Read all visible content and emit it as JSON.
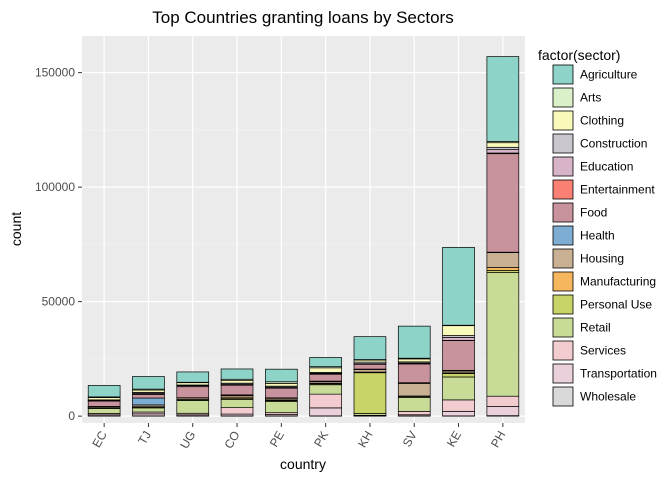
{
  "chart_data": {
    "type": "bar",
    "stacked": true,
    "title": "Top Countries granting loans by Sectors",
    "xlabel": "country",
    "ylabel": "count",
    "ylim": [
      -3000,
      166000
    ],
    "yticks": [
      0,
      50000,
      100000,
      150000
    ],
    "ytick_labels": [
      "0",
      "50000",
      "100000",
      "150000"
    ],
    "grid": true,
    "legend_title": "factor(sector)",
    "legend_position": "right",
    "categories": [
      "EC",
      "TJ",
      "UG",
      "CO",
      "PE",
      "PK",
      "KH",
      "SV",
      "KE",
      "PH"
    ],
    "series": [
      {
        "name": "Agriculture",
        "color": "#8DD3C7",
        "values": [
          5000,
          5500,
          4500,
          4500,
          5500,
          4000,
          10000,
          14000,
          34000,
          37000
        ]
      },
      {
        "name": "Arts",
        "color": "#D9F0C8",
        "values": [
          300,
          400,
          200,
          600,
          700,
          500,
          200,
          300,
          200,
          600
        ]
      },
      {
        "name": "Clothing",
        "color": "#F9F9BA",
        "values": [
          1000,
          1000,
          1000,
          1100,
          1200,
          2000,
          900,
          1300,
          4300,
          2000
        ]
      },
      {
        "name": "Construction",
        "color": "#C9C6CE",
        "values": [
          200,
          400,
          300,
          400,
          400,
          400,
          700,
          500,
          800,
          1000
        ]
      },
      {
        "name": "Education",
        "color": "#D7B4C7",
        "values": [
          300,
          400,
          400,
          400,
          400,
          300,
          200,
          300,
          1300,
          1500
        ]
      },
      {
        "name": "Entertainment",
        "color": "#F98073",
        "values": [
          50,
          100,
          50,
          100,
          100,
          100,
          50,
          100,
          100,
          300
        ]
      },
      {
        "name": "Food",
        "color": "#C9939D",
        "values": [
          2300,
          1600,
          4800,
          4200,
          4200,
          3000,
          2100,
          8200,
          13000,
          43000
        ]
      },
      {
        "name": "Health",
        "color": "#7EADD3",
        "values": [
          50,
          3000,
          100,
          300,
          200,
          300,
          200,
          300,
          300,
          200
        ]
      },
      {
        "name": "Housing",
        "color": "#C9B093",
        "values": [
          500,
          800,
          700,
          700,
          700,
          700,
          1100,
          5500,
          800,
          6500
        ]
      },
      {
        "name": "Manufacturing",
        "color": "#F6B65D",
        "values": [
          50,
          100,
          100,
          500,
          300,
          200,
          300,
          200,
          300,
          1300
        ]
      },
      {
        "name": "Personal Use",
        "color": "#C8D368",
        "values": [
          300,
          400,
          300,
          500,
          400,
          400,
          17800,
          400,
          1500,
          900
        ]
      },
      {
        "name": "Retail",
        "color": "#C8DC98",
        "values": [
          2200,
          1800,
          5600,
          3600,
          4900,
          4100,
          800,
          6100,
          10000,
          54000
        ]
      },
      {
        "name": "Services",
        "color": "#F3CCD0",
        "values": [
          600,
          800,
          700,
          2800,
          800,
          6000,
          200,
          1500,
          5000,
          4500
        ]
      },
      {
        "name": "Transportation",
        "color": "#EAD0DA",
        "values": [
          500,
          900,
          500,
          800,
          600,
          3500,
          100,
          500,
          2000,
          4000
        ]
      },
      {
        "name": "Wholesale",
        "color": "#D9D9D9",
        "values": [
          50,
          100,
          50,
          100,
          100,
          100,
          50,
          100,
          100,
          200
        ]
      }
    ]
  }
}
